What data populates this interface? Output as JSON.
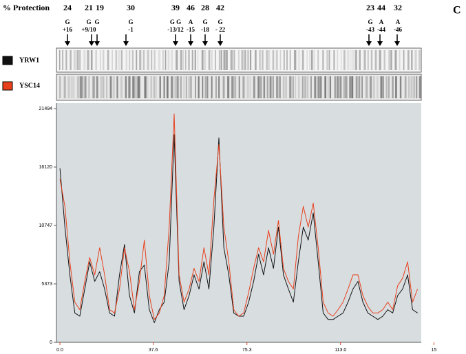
{
  "chart_data": {
    "type": "line",
    "title": "% Protection",
    "panel_label": "C",
    "annotations": [
      {
        "pct": "24",
        "base": "G",
        "pos": "+16"
      },
      {
        "pct": "21",
        "base": "G",
        "pos": "+9/10"
      },
      {
        "pct": "19",
        "base": "G"
      },
      {
        "pct": "30",
        "base": "G",
        "pos": "-1"
      },
      {
        "pct": "39",
        "base": "G G",
        "pos": "-13/12"
      },
      {
        "pct": "46",
        "base": "A",
        "pos": "-15"
      },
      {
        "pct": "28",
        "base": "G",
        "pos": "-18"
      },
      {
        "pct": "42",
        "base": "G",
        "pos": "- 22"
      },
      {
        "pct": "23",
        "base": "G",
        "pos": "-43"
      },
      {
        "pct": "44",
        "base": "A",
        "pos": "-44"
      },
      {
        "pct": "32",
        "base": "A",
        "pos": "-46"
      }
    ],
    "x": [
      0,
      2,
      4,
      6,
      8,
      10,
      12,
      14,
      16,
      18,
      20,
      22,
      24,
      26,
      28,
      30,
      32,
      34,
      36,
      38,
      40,
      42,
      44,
      46,
      48,
      50,
      52,
      54,
      56,
      58,
      60,
      62,
      64,
      66,
      68,
      70,
      72,
      74,
      76,
      78,
      80,
      82,
      84,
      86,
      88,
      90,
      92,
      94,
      96,
      98,
      100,
      102,
      104,
      106,
      108,
      110,
      112,
      114,
      116,
      118,
      120,
      122,
      124,
      126,
      128,
      130,
      132,
      134,
      136,
      138,
      140,
      142,
      144
    ],
    "series": [
      {
        "name": "YRW1",
        "color": "#111111",
        "values": [
          16000,
          10600,
          6200,
          2700,
          2400,
          4900,
          7400,
          5600,
          6500,
          4900,
          2700,
          2400,
          6200,
          9000,
          4300,
          2700,
          6500,
          7100,
          3000,
          1800,
          3000,
          3700,
          7400,
          19100,
          5600,
          3000,
          4300,
          6200,
          4900,
          7400,
          4900,
          10600,
          18800,
          8700,
          6200,
          2700,
          2400,
          2400,
          3700,
          5600,
          8100,
          6200,
          8700,
          6800,
          10600,
          6200,
          4900,
          3700,
          7400,
          10600,
          9400,
          11900,
          7400,
          2700,
          2100,
          2100,
          2400,
          2700,
          3700,
          4900,
          5600,
          3700,
          2700,
          2400,
          2100,
          2400,
          3000,
          2700,
          4300,
          4900,
          6200,
          3000,
          2700
        ]
      },
      {
        "name": "YSC14",
        "color": "#e8401c",
        "values": [
          15000,
          12500,
          7400,
          3700,
          3000,
          5600,
          7800,
          6200,
          8700,
          6200,
          3000,
          2700,
          4900,
          8700,
          6500,
          3000,
          5600,
          9400,
          4300,
          2100,
          2700,
          4300,
          10600,
          21000,
          6200,
          3700,
          4900,
          6800,
          5600,
          8700,
          6200,
          13100,
          18200,
          10600,
          7400,
          3000,
          2400,
          2700,
          4600,
          6800,
          8700,
          7400,
          10300,
          8100,
          11200,
          6800,
          5600,
          4900,
          9700,
          12500,
          10600,
          12800,
          8700,
          3700,
          2700,
          2400,
          3000,
          3700,
          4900,
          6200,
          6200,
          4300,
          3300,
          2700,
          2700,
          3000,
          3700,
          3000,
          5200,
          5900,
          7400,
          3700,
          4900
        ]
      }
    ],
    "xlim": [
      -1.4,
      145.5
    ],
    "ylim": [
      0,
      22000
    ],
    "xticks": [
      0,
      37.6,
      75.3,
      113,
      {
        "value": 150.6,
        "label": "15"
      }
    ],
    "yticks": [
      0,
      5373,
      10747,
      16120,
      21494
    ],
    "xtick_labels": [
      "0.0",
      "37.6",
      "75.3",
      "113.0",
      "15"
    ]
  }
}
